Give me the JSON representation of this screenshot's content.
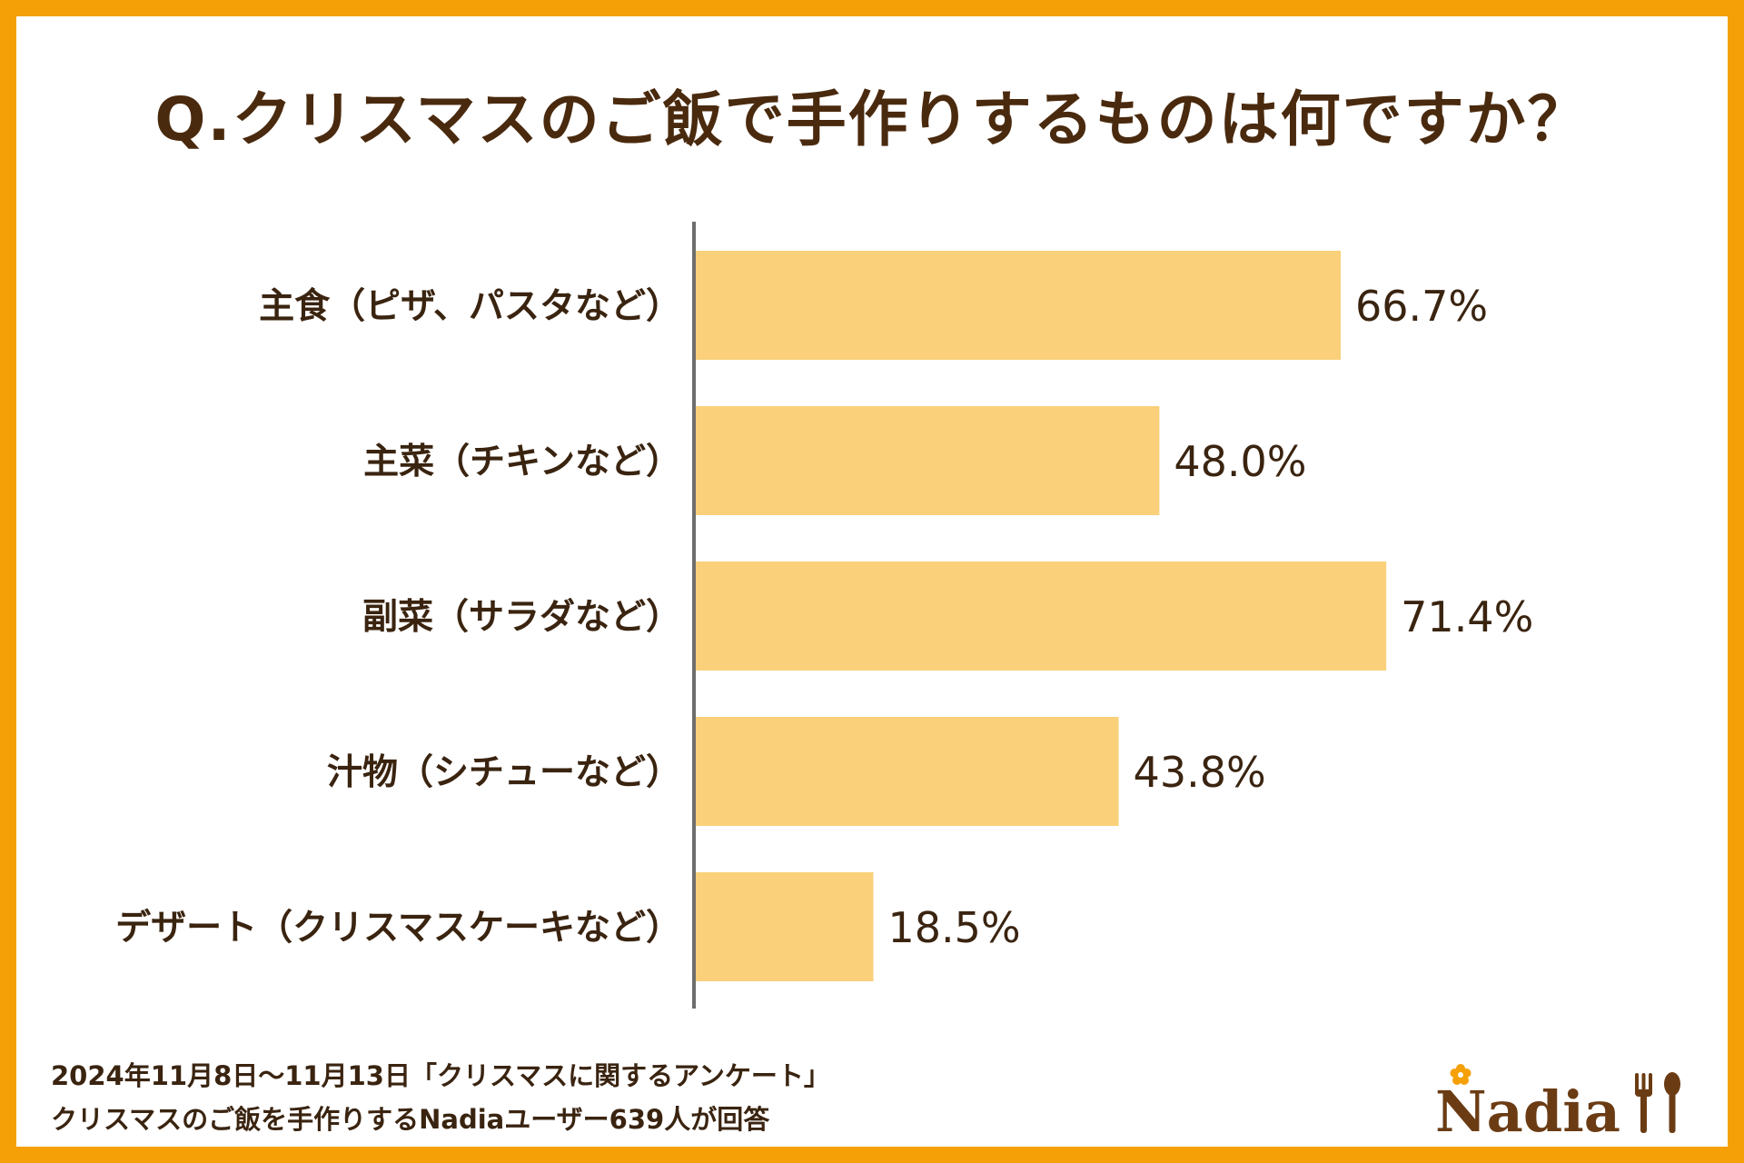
{
  "title": "Q.クリスマスのご飯で手作りするものは何ですか？",
  "chart_data": {
    "type": "bar",
    "orientation": "horizontal",
    "categories": [
      "主食（ピザ、パスタなど）",
      "主菜（チキンなど）",
      "副菜（サラダなど）",
      "汁物（シチューなど）",
      "デザート（クリスマスケーキなど）"
    ],
    "values": [
      66.7,
      48.0,
      71.4,
      43.8,
      18.5
    ],
    "value_labels": [
      "66.7%",
      "48.0%",
      "71.4%",
      "43.8%",
      "18.5%"
    ],
    "unit": "%",
    "xlim": [
      0,
      100
    ],
    "grid": false,
    "legend": "none",
    "bar_color": "#fad07a",
    "axis_color": "#6e6e6e"
  },
  "footnote": {
    "line1": "2024年11月8日〜11月13日「クリスマスに関するアンケート」",
    "line2": "クリスマスのご飯を手作りするNadiaユーザー639人が回答"
  },
  "brand": {
    "logo_text": "Nadia",
    "logo_icons": [
      "flower-icon",
      "fork-icon",
      "spoon-icon"
    ],
    "frame_color": "#f5a006",
    "title_color": "#4a2a0e"
  }
}
